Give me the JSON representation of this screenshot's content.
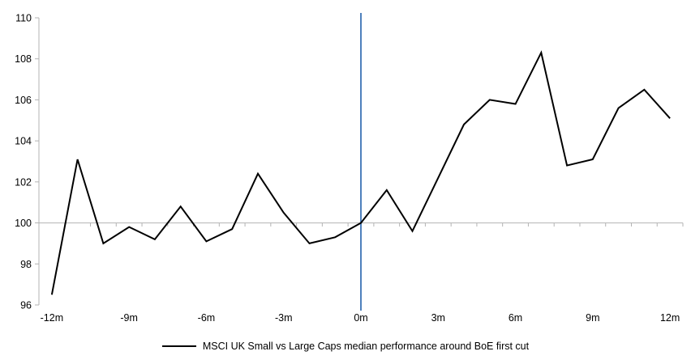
{
  "chart_data": {
    "type": "line",
    "title": "",
    "x": [
      -12,
      -11,
      -10,
      -9,
      -8,
      -7,
      -6,
      -5,
      -4,
      -3,
      -2,
      -1,
      0,
      1,
      2,
      3,
      4,
      5,
      6,
      7,
      8,
      9,
      10,
      11,
      12
    ],
    "series": [
      {
        "name": "MSCI UK Small vs Large Caps median performance around BoE first cut",
        "color": "#000000",
        "values": [
          96.5,
          103.1,
          99.0,
          99.8,
          99.2,
          100.8,
          99.1,
          99.7,
          102.4,
          100.5,
          99.0,
          99.3,
          100.0,
          101.6,
          99.6,
          102.2,
          104.8,
          106.0,
          105.8,
          108.3,
          102.8,
          103.1,
          105.6,
          106.5,
          105.1
        ]
      }
    ],
    "ylim": [
      96,
      110
    ],
    "y_ticks": [
      96,
      98,
      100,
      102,
      104,
      106,
      108,
      110
    ],
    "x_tick_labels": [
      "-12m",
      "-9m",
      "-6m",
      "-3m",
      "0m",
      "3m",
      "6m",
      "9m",
      "12m"
    ],
    "x_tick_positions": [
      -12,
      -9,
      -6,
      -3,
      0,
      3,
      6,
      9,
      12
    ],
    "baseline_value": 100,
    "event_line": {
      "x": 0,
      "color": "#4f81bd"
    },
    "axis_color": "#b3b3b3",
    "grid": "off",
    "legend_position": "bottom"
  }
}
